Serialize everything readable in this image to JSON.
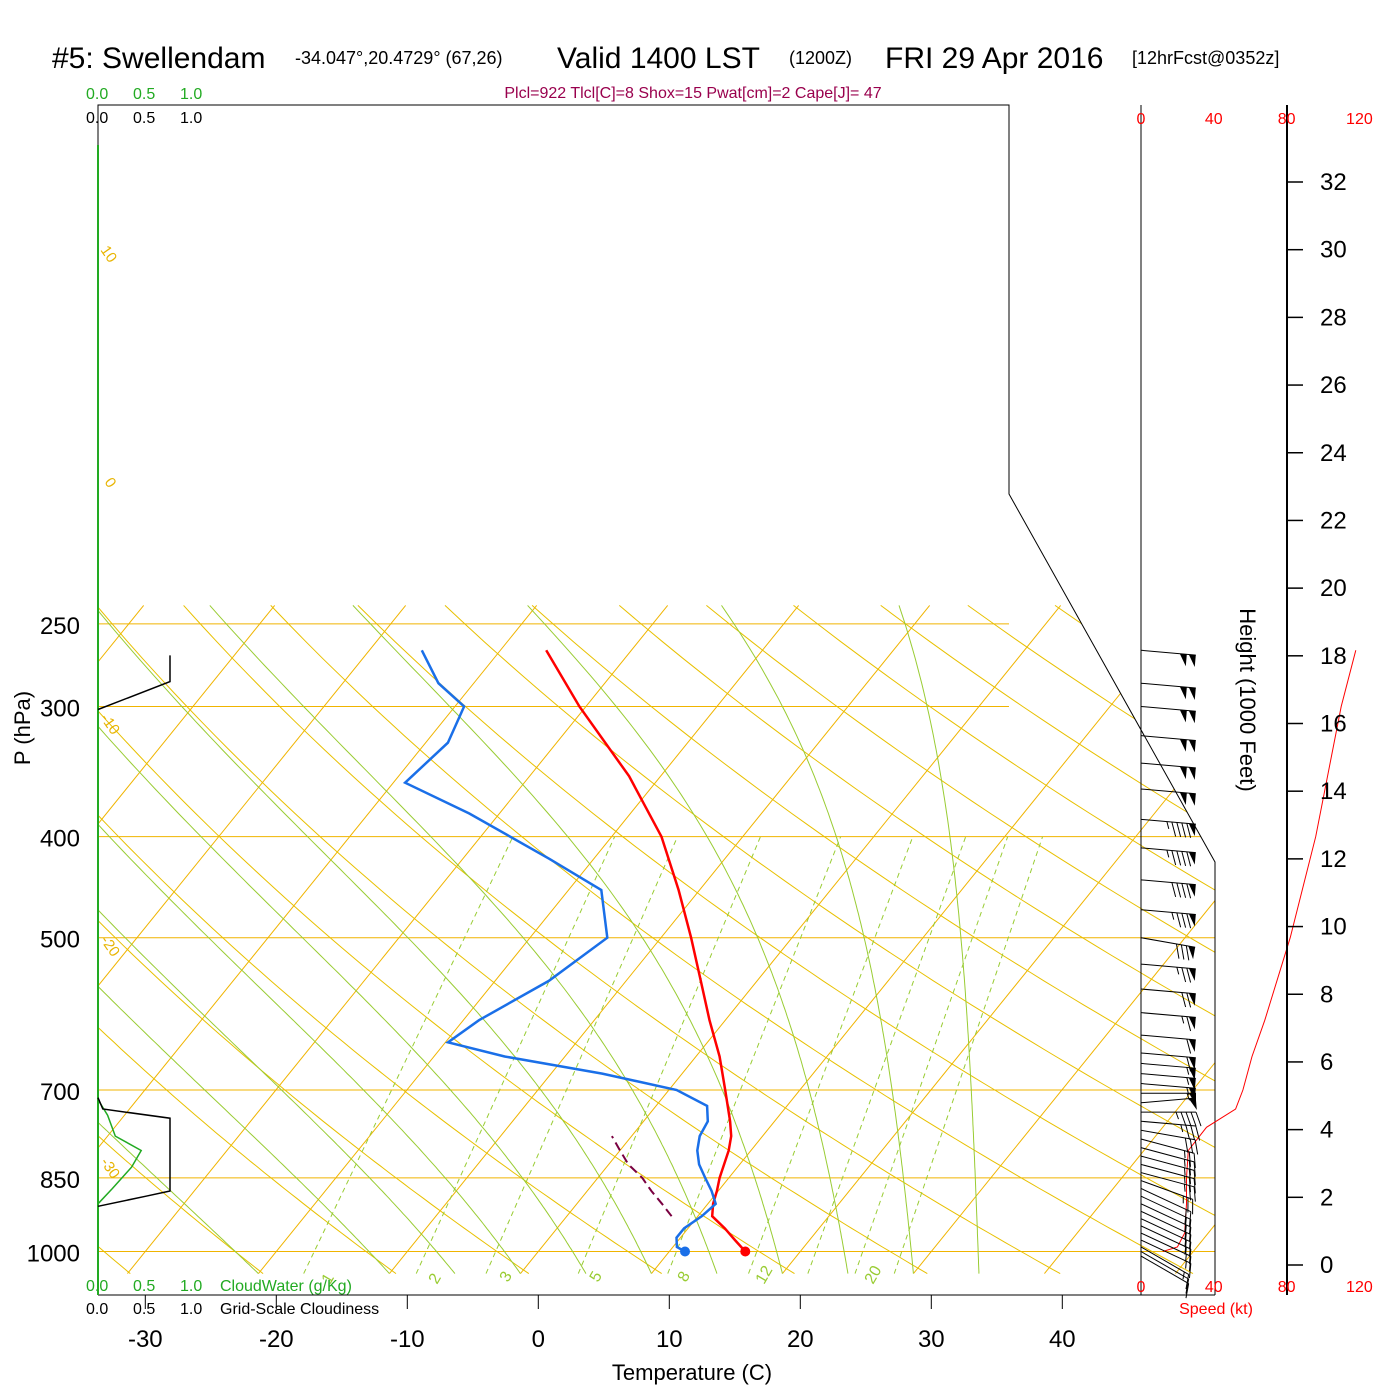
{
  "header": {
    "station": "#5: Swellendam",
    "coords": "-34.047°,20.4729° (67,26)",
    "valid": "Valid 1400 LST",
    "utc": "(1200Z)",
    "date": "FRI 29 Apr 2016",
    "forecast": "[12hrFcst@0352z]",
    "indices": "Plcl=922 Tlcl[C]=8 Shox=15 Pwat[cm]=2 Cape[J]= 47"
  },
  "axes": {
    "y_label": "P (hPa)",
    "x_label": "Temperature (C)",
    "height_label": "Height (1000 Feet)",
    "speed_label": "Speed (kt)",
    "cloudwater_label": "CloudWater (g/Kg)",
    "cloudiness_label": "Grid-Scale Cloudiness"
  },
  "chart_data": {
    "type": "skew-t sounding",
    "pressure_ticks": [
      "250",
      "300",
      "400",
      "500",
      "700",
      "850",
      "1000"
    ],
    "temperature_ticks": [
      "-30",
      "-20",
      "-10",
      "0",
      "10",
      "20",
      "30",
      "40"
    ],
    "height_ticks_kft": [
      "0",
      "2",
      "4",
      "6",
      "8",
      "10",
      "12",
      "14",
      "16",
      "18",
      "20",
      "22",
      "24",
      "26",
      "28",
      "30",
      "32"
    ],
    "speed_ticks_kt": [
      "0",
      "40",
      "80",
      "120"
    ],
    "cloud_ticks_top": [
      "0.0",
      "0.5",
      "1.0"
    ],
    "cloud_ticks_bottom": [
      "0.0",
      "0.5",
      "1.0"
    ],
    "dry_adiabat_labels": [
      "-10",
      "0",
      "10",
      "20",
      "30"
    ],
    "isotherm_labels": [
      "10",
      "0",
      "-10",
      "-20",
      "-30"
    ],
    "mixing_ratio_labels": [
      "1",
      "2",
      "3",
      "5",
      "8",
      "12",
      "20"
    ],
    "temperature_profile": [
      {
        "p": 1000,
        "t": 15.8
      },
      {
        "p": 975,
        "t": 14.3
      },
      {
        "p": 950,
        "t": 12.8
      },
      {
        "p": 925,
        "t": 11.1
      },
      {
        "p": 900,
        "t": 10.4
      },
      {
        "p": 875,
        "t": 9.9
      },
      {
        "p": 850,
        "t": 9.3
      },
      {
        "p": 800,
        "t": 8.3
      },
      {
        "p": 775,
        "t": 7.6
      },
      {
        "p": 750,
        "t": 6.6
      },
      {
        "p": 700,
        "t": 4.3
      },
      {
        "p": 650,
        "t": 1.8
      },
      {
        "p": 600,
        "t": -1.2
      },
      {
        "p": 550,
        "t": -4.3
      },
      {
        "p": 500,
        "t": -7.7
      },
      {
        "p": 450,
        "t": -11.6
      },
      {
        "p": 400,
        "t": -16.2
      },
      {
        "p": 350,
        "t": -22.4
      },
      {
        "p": 300,
        "t": -30.5
      },
      {
        "p": 265,
        "t": -36.5
      }
    ],
    "dewpoint_profile": [
      {
        "p": 1000,
        "t": 11.2
      },
      {
        "p": 990,
        "t": 10.3
      },
      {
        "p": 970,
        "t": 9.7
      },
      {
        "p": 950,
        "t": 9.7
      },
      {
        "p": 925,
        "t": 10.3
      },
      {
        "p": 900,
        "t": 10.6
      },
      {
        "p": 875,
        "t": 9.5
      },
      {
        "p": 850,
        "t": 8.2
      },
      {
        "p": 825,
        "t": 6.9
      },
      {
        "p": 800,
        "t": 5.9
      },
      {
        "p": 775,
        "t": 5.2
      },
      {
        "p": 750,
        "t": 4.9
      },
      {
        "p": 725,
        "t": 3.9
      },
      {
        "p": 700,
        "t": 0.6
      },
      {
        "p": 675,
        "t": -6.1
      },
      {
        "p": 650,
        "t": -14.6
      },
      {
        "p": 630,
        "t": -19.8
      },
      {
        "p": 600,
        "t": -18.8
      },
      {
        "p": 550,
        "t": -15.9
      },
      {
        "p": 500,
        "t": -14.1
      },
      {
        "p": 450,
        "t": -17.5
      },
      {
        "p": 420,
        "t": -23.4
      },
      {
        "p": 380,
        "t": -32.3
      },
      {
        "p": 355,
        "t": -39.1
      },
      {
        "p": 325,
        "t": -38.3
      },
      {
        "p": 300,
        "t": -39.3
      },
      {
        "p": 285,
        "t": -42.7
      },
      {
        "p": 265,
        "t": -46.0
      }
    ],
    "parcel_profile": [
      {
        "p": 925,
        "t": 8.0
      },
      {
        "p": 900,
        "t": 6.5
      },
      {
        "p": 875,
        "t": 4.9
      },
      {
        "p": 850,
        "t": 3.4
      },
      {
        "p": 825,
        "t": 1.5
      },
      {
        "p": 800,
        "t": 0.0
      },
      {
        "p": 775,
        "t": -1.5
      }
    ],
    "surface_temperature_c": 15.8,
    "surface_dewpoint_c": 11.2,
    "height_profile": [
      {
        "p": 1000,
        "h": 0.5
      },
      {
        "p": 850,
        "h": 4.9
      },
      {
        "p": 700,
        "h": 10.2
      },
      {
        "p": 500,
        "h": 18.8
      },
      {
        "p": 400,
        "h": 24.4
      },
      {
        "p": 300,
        "h": 31.0
      },
      {
        "p": 265,
        "h": 33.5
      }
    ],
    "wind_speed_profile_kt": [
      {
        "p": 1000,
        "kt": 12
      },
      {
        "p": 990,
        "kt": 20
      },
      {
        "p": 960,
        "kt": 24
      },
      {
        "p": 900,
        "kt": 25
      },
      {
        "p": 850,
        "kt": 25
      },
      {
        "p": 800,
        "kt": 26
      },
      {
        "p": 760,
        "kt": 36
      },
      {
        "p": 730,
        "kt": 52
      },
      {
        "p": 700,
        "kt": 56
      },
      {
        "p": 650,
        "kt": 61
      },
      {
        "p": 600,
        "kt": 68
      },
      {
        "p": 500,
        "kt": 82
      },
      {
        "p": 400,
        "kt": 96
      },
      {
        "p": 300,
        "kt": 110
      },
      {
        "p": 265,
        "kt": 118
      }
    ],
    "cloudwater_profile_gkg": [
      {
        "p": 715,
        "v": 0.0
      },
      {
        "p": 740,
        "v": 0.1
      },
      {
        "p": 775,
        "v": 0.18
      },
      {
        "p": 800,
        "v": 0.45
      },
      {
        "p": 830,
        "v": 0.35
      },
      {
        "p": 870,
        "v": 0.15
      },
      {
        "p": 900,
        "v": 0.0
      }
    ],
    "cloudiness_profile": [
      {
        "p": 268,
        "v": 0.75
      },
      {
        "p": 284,
        "v": 0.75
      },
      {
        "p": 302,
        "v": 0.0
      }
    ],
    "cloudiness_low_profile": [
      {
        "p": 712,
        "v": 0.0
      },
      {
        "p": 730,
        "v": 0.05
      },
      {
        "p": 745,
        "v": 0.75
      },
      {
        "p": 875,
        "v": 0.75
      },
      {
        "p": 885,
        "v": 0.5
      },
      {
        "p": 905,
        "v": 0.0
      }
    ],
    "wind_barbs": [
      {
        "p": 1010,
        "dir": 300,
        "kt": 10
      },
      {
        "p": 1000,
        "dir": 300,
        "kt": 10
      },
      {
        "p": 990,
        "dir": 300,
        "kt": 15
      },
      {
        "p": 975,
        "dir": 295,
        "kt": 15
      },
      {
        "p": 960,
        "dir": 295,
        "kt": 15
      },
      {
        "p": 945,
        "dir": 295,
        "kt": 15
      },
      {
        "p": 930,
        "dir": 295,
        "kt": 20
      },
      {
        "p": 915,
        "dir": 295,
        "kt": 20
      },
      {
        "p": 900,
        "dir": 295,
        "kt": 20
      },
      {
        "p": 885,
        "dir": 295,
        "kt": 20
      },
      {
        "p": 870,
        "dir": 295,
        "kt": 20
      },
      {
        "p": 855,
        "dir": 290,
        "kt": 25
      },
      {
        "p": 840,
        "dir": 285,
        "kt": 25
      },
      {
        "p": 825,
        "dir": 285,
        "kt": 25
      },
      {
        "p": 810,
        "dir": 285,
        "kt": 25
      },
      {
        "p": 795,
        "dir": 285,
        "kt": 25
      },
      {
        "p": 780,
        "dir": 285,
        "kt": 25
      },
      {
        "p": 765,
        "dir": 280,
        "kt": 30
      },
      {
        "p": 750,
        "dir": 275,
        "kt": 35
      },
      {
        "p": 735,
        "dir": 270,
        "kt": 45
      },
      {
        "p": 720,
        "dir": 265,
        "kt": 50
      },
      {
        "p": 705,
        "dir": 270,
        "kt": 55
      },
      {
        "p": 690,
        "dir": 275,
        "kt": 55
      },
      {
        "p": 675,
        "dir": 275,
        "kt": 55
      },
      {
        "p": 660,
        "dir": 275,
        "kt": 55
      },
      {
        "p": 645,
        "dir": 275,
        "kt": 60
      },
      {
        "p": 620,
        "dir": 275,
        "kt": 60
      },
      {
        "p": 590,
        "dir": 275,
        "kt": 65
      },
      {
        "p": 560,
        "dir": 275,
        "kt": 70
      },
      {
        "p": 530,
        "dir": 275,
        "kt": 75
      },
      {
        "p": 500,
        "dir": 280,
        "kt": 80
      },
      {
        "p": 470,
        "dir": 275,
        "kt": 85
      },
      {
        "p": 440,
        "dir": 275,
        "kt": 90
      },
      {
        "p": 410,
        "dir": 275,
        "kt": 95
      },
      {
        "p": 385,
        "dir": 275,
        "kt": 95
      },
      {
        "p": 360,
        "dir": 275,
        "kt": 100
      },
      {
        "p": 340,
        "dir": 275,
        "kt": 100
      },
      {
        "p": 320,
        "dir": 275,
        "kt": 100
      },
      {
        "p": 300,
        "dir": 275,
        "kt": 100
      },
      {
        "p": 285,
        "dir": 275,
        "kt": 100
      },
      {
        "p": 265,
        "dir": 275,
        "kt": 100
      }
    ]
  },
  "colors": {
    "temperature": "#ff0000",
    "dewpoint": "#1a6fe8",
    "parcel": "#7a0040",
    "isotherm": "#f0b400",
    "dry_adiabat": "#e8c000",
    "moist_adiabat": "#99cc33",
    "mixing_ratio": "#99cc33",
    "cloudwater": "#22aa22",
    "speed": "#ff0000"
  }
}
